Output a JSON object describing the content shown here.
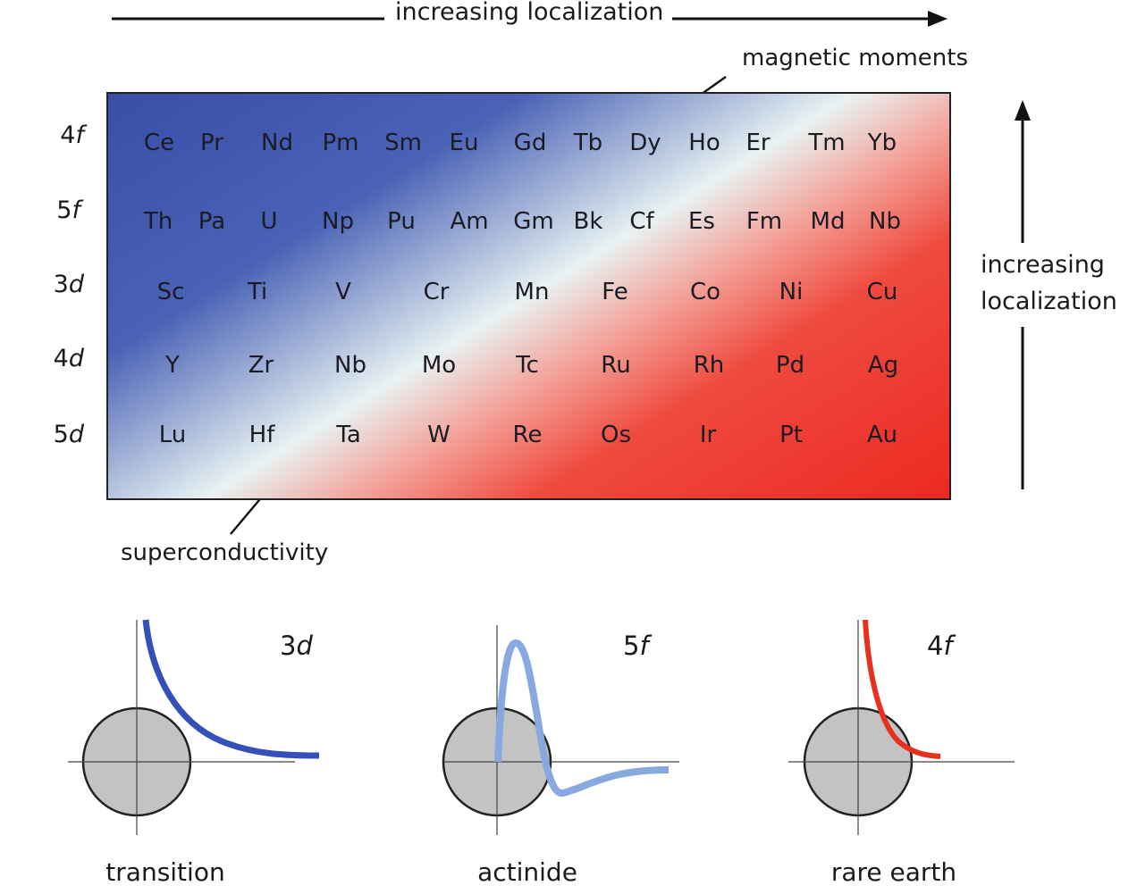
{
  "top_arrow_label": "increasing localization",
  "right_arrow_label_line1": "increasing",
  "right_arrow_label_line2": "localization",
  "magnetic_label": "magnetic moments",
  "supercond_label": "superconductivity",
  "rows": [
    {
      "num": "4",
      "shell": "f",
      "elements": [
        "Ce",
        "Pr",
        "Nd",
        "Pm",
        "Sm",
        "Eu",
        "Gd",
        "Tb",
        "Dy",
        "Ho",
        "Er",
        "Tm",
        "Yb"
      ]
    },
    {
      "num": "5",
      "shell": "f",
      "elements": [
        "Th",
        "Pa",
        "U",
        "Np",
        "Pu",
        "Am",
        "Gm",
        "Bk",
        "Cf",
        "Es",
        "Fm",
        "Md",
        "Nb"
      ]
    },
    {
      "num": "3",
      "shell": "d",
      "elements": [
        "Sc",
        "Ti",
        "V",
        "Cr",
        "Mn",
        "Fe",
        "Co",
        "Ni",
        "Cu"
      ]
    },
    {
      "num": "4",
      "shell": "d",
      "elements": [
        "Y",
        "Zr",
        "Nb",
        "Mo",
        "Tc",
        "Ru",
        "Rh",
        "Pd",
        "Ag"
      ]
    },
    {
      "num": "5",
      "shell": "d",
      "elements": [
        "Lu",
        "Hf",
        "Ta",
        "W",
        "Re",
        "Os",
        "Ir",
        "Pt",
        "Au"
      ]
    }
  ],
  "panels": [
    {
      "num": "3",
      "shell": "d",
      "name": "transition",
      "color": "#3550b8"
    },
    {
      "num": "5",
      "shell": "f",
      "name": "actinide",
      "color": "#88a8e0"
    },
    {
      "num": "4",
      "shell": "f",
      "name": "rare earth",
      "color": "#e8301f"
    }
  ]
}
